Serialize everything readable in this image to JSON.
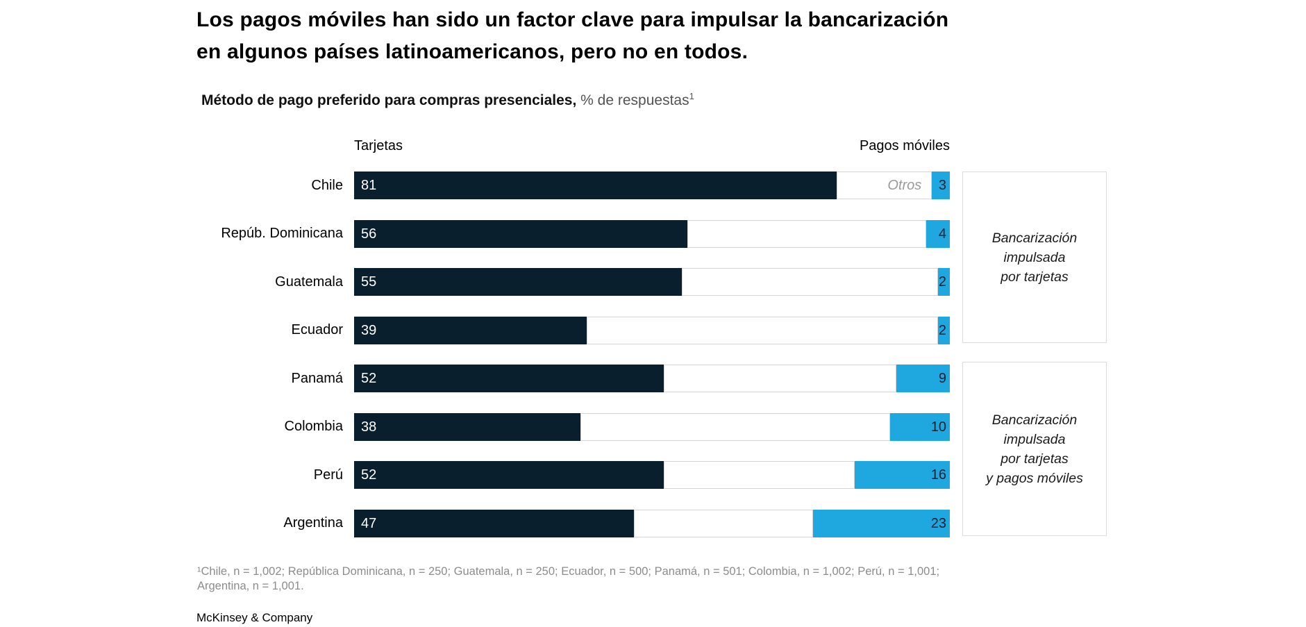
{
  "page": {
    "title": "Los pagos móviles han sido un factor clave para impulsar la bancarización\nen algunos países latinoamericanos, pero no en todos.",
    "subtitle_bold": "Método de pago preferido para compras presenciales,",
    "subtitle_rest": " % de respuestas",
    "subtitle_sup": "1",
    "footnote": "¹Chile, n = 1,002; República Dominicana, n = 250; Guatemala, n = 250; Ecuador, n = 500; Panamá, n = 501; Colombia, n = 1,002; Perú, n = 1,001;\nArgentina, n = 1,001.",
    "brand": "McKinsey & Company"
  },
  "chart_data": {
    "type": "bar",
    "orientation": "horizontal",
    "stacked": true,
    "title": "Método de pago preferido para compras presenciales",
    "unit": "% de respuestas",
    "xlim": [
      0,
      100
    ],
    "axis_headers": {
      "left": "Tarjetas",
      "right": "Pagos móviles"
    },
    "categories": [
      "Chile",
      "Repúb. Dominicana",
      "Guatemala",
      "Ecuador",
      "Panamá",
      "Colombia",
      "Perú",
      "Argentina"
    ],
    "series": [
      {
        "name": "Tarjetas",
        "values": [
          81,
          56,
          55,
          39,
          52,
          38,
          52,
          47
        ]
      },
      {
        "name": "Otros",
        "values": [
          16,
          40,
          43,
          59,
          39,
          52,
          32,
          30
        ]
      },
      {
        "name": "Pagos móviles",
        "values": [
          3,
          4,
          2,
          2,
          9,
          10,
          16,
          23
        ]
      }
    ],
    "otros_label": "Otros",
    "otros_label_row": "Chile",
    "annotations": [
      {
        "text": "Bancarización\nimpulsada\npor tarjetas",
        "rows": [
          "Chile",
          "Repúb. Dominicana",
          "Guatemala",
          "Ecuador"
        ]
      },
      {
        "text": "Bancarización\nimpulsada\npor tarjetas\ny pagos móviles",
        "rows": [
          "Panamá",
          "Colombia",
          "Perú",
          "Argentina"
        ]
      }
    ],
    "colors": {
      "tarjetas": "#0a1f2e",
      "pagos_moviles": "#1fa8e0",
      "otros_fill": "#ffffff",
      "otros_border": "#d4d4d4",
      "otros_text": "#9b9b9b",
      "value_dark_text": "#ffffff",
      "value_blue_text": "#0a1f2e"
    },
    "legend_position": "none",
    "grid": false
  }
}
